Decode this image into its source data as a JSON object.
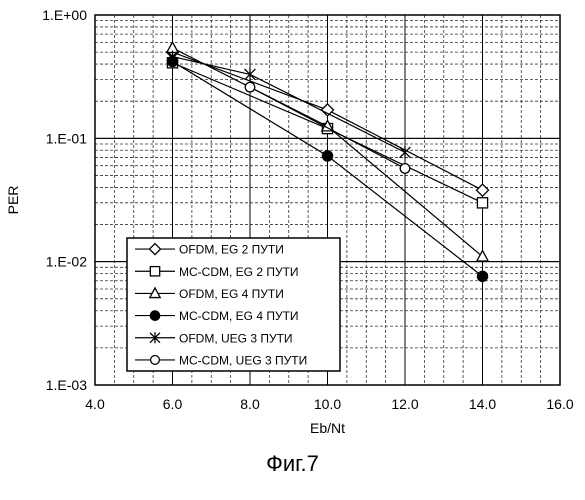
{
  "chart_data": {
    "type": "line",
    "xlabel": "Eb/Nt",
    "ylabel": "PER",
    "xlim": [
      4.0,
      16.0
    ],
    "ylim": [
      0.001,
      1.0
    ],
    "yscale": "log",
    "grid": true,
    "xticks": [
      "4.0",
      "6.0",
      "8.0",
      "10.0",
      "12.0",
      "14.0",
      "16.0"
    ],
    "xtick_values": [
      4,
      6,
      8,
      10,
      12,
      14,
      16
    ],
    "yticks": [
      "1.E-03",
      "1.E-02",
      "1.E-01",
      "1.E+00"
    ],
    "ytick_values": [
      0.001,
      0.01,
      0.1,
      1.0
    ],
    "legend_position": "bottom-left",
    "series": [
      {
        "name": "OFDM, EG 2 ПУТИ",
        "marker": "diamond",
        "x": [
          6,
          10,
          14
        ],
        "y": [
          0.5,
          0.17,
          0.038
        ]
      },
      {
        "name": "MC-CDM, EG 2 ПУТИ",
        "marker": "square",
        "x": [
          6,
          10,
          14
        ],
        "y": [
          0.41,
          0.12,
          0.03
        ]
      },
      {
        "name": "OFDM, EG 4 ПУТИ",
        "marker": "triangle",
        "x": [
          6,
          10,
          14
        ],
        "y": [
          0.54,
          0.125,
          0.011
        ]
      },
      {
        "name": "MC-CDM, EG 4 ПУТИ",
        "marker": "filled-circle",
        "x": [
          6,
          10,
          14
        ],
        "y": [
          0.42,
          0.072,
          0.0076
        ]
      },
      {
        "name": "OFDM, UEG 3 ПУТИ",
        "marker": "asterisk",
        "x": [
          6,
          8,
          12
        ],
        "y": [
          0.46,
          0.33,
          0.077
        ]
      },
      {
        "name": "MC-CDM, UEG 3 ПУТИ",
        "marker": "open-circle",
        "x": [
          8,
          12
        ],
        "y": [
          0.26,
          0.057
        ]
      }
    ]
  },
  "caption": "Фиг.7"
}
